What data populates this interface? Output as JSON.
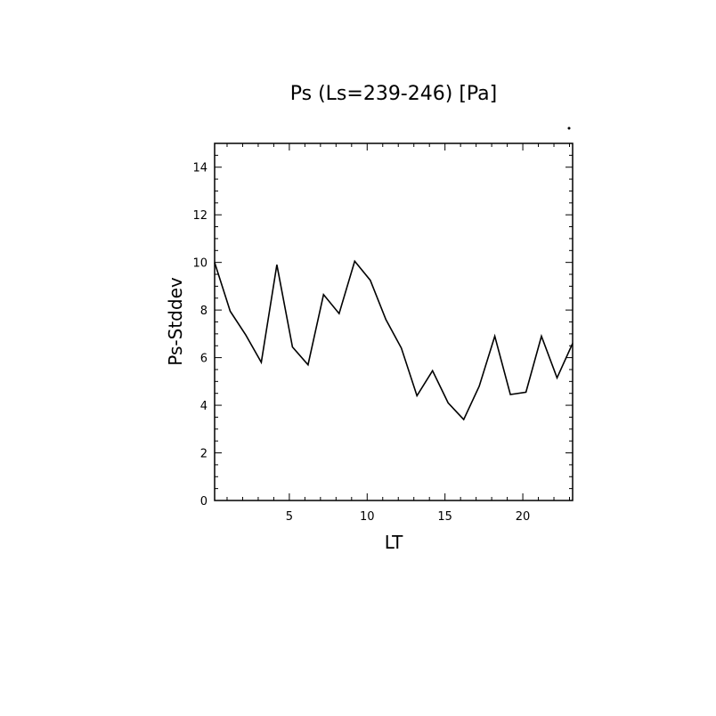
{
  "chart_data": {
    "type": "line",
    "title": "Ps (Ls=239-246) [Pa]",
    "xlabel": "LT",
    "ylabel": "Ps-Stddev",
    "xlim": [
      0.2,
      23.2
    ],
    "ylim": [
      0,
      15
    ],
    "x_ticks": [
      5,
      10,
      15,
      20
    ],
    "y_ticks": [
      0,
      2,
      4,
      6,
      8,
      10,
      12,
      14
    ],
    "grid": false,
    "series": [
      {
        "x": [
          0.2,
          1.2,
          2.2,
          3.2,
          4.2,
          5.2,
          6.2,
          7.2,
          8.2,
          9.2,
          10.2,
          11.2,
          12.2,
          13.2,
          14.2,
          15.2,
          16.2,
          17.2,
          18.2,
          19.2,
          20.2,
          21.2,
          22.2,
          23.2
        ],
        "values": [
          10.0,
          7.95,
          6.95,
          5.8,
          9.9,
          6.45,
          5.7,
          8.65,
          7.85,
          10.05,
          9.25,
          7.6,
          6.4,
          4.4,
          5.45,
          4.1,
          3.4,
          4.8,
          6.9,
          4.45,
          4.55,
          6.9,
          5.15,
          6.6
        ]
      }
    ],
    "color": "#000000"
  }
}
